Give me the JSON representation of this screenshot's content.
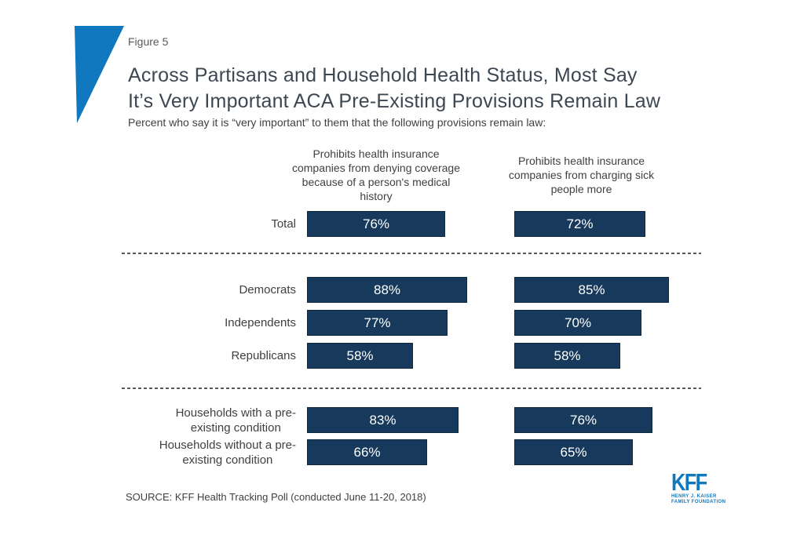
{
  "figure_label": "Figure 5",
  "title_lines": [
    "Across Partisans and Household Health Status, Most Say",
    "It’s Very Important ACA Pre-Existing Provisions Remain Law"
  ],
  "subtitle": "Percent who say it is “very important” to them that the following provisions remain law:",
  "source": "SOURCE: KFF Health Tracking Poll (conducted June 11-20, 2018)",
  "logo": {
    "text": "KFF",
    "tagline_lines": [
      "HENRY J. KAISER",
      "FAMILY FOUNDATION"
    ]
  },
  "colors": {
    "bar": "#17395B",
    "accent_blue": "#0F78BE",
    "title_text": "#3D4752",
    "body_text": "#404040"
  },
  "chart_data": {
    "type": "bar",
    "orientation": "horizontal",
    "unit": "%",
    "xlim": [
      0,
      100
    ],
    "columns": [
      "Prohibits health insurance companies from denying coverage because of a person's medical history",
      "Prohibits health insurance companies from charging sick people more"
    ],
    "groups": [
      {
        "name": "total",
        "rows": [
          {
            "label_lines": [
              "Total"
            ],
            "values": [
              76,
              72
            ]
          }
        ]
      },
      {
        "name": "party",
        "rows": [
          {
            "label_lines": [
              "Democrats"
            ],
            "values": [
              88,
              85
            ]
          },
          {
            "label_lines": [
              "Independents"
            ],
            "values": [
              77,
              70
            ]
          },
          {
            "label_lines": [
              "Republicans"
            ],
            "values": [
              58,
              58
            ]
          }
        ]
      },
      {
        "name": "household-health-status",
        "rows": [
          {
            "label_lines": [
              "Households with a pre-",
              "existing condition"
            ],
            "values": [
              83,
              76
            ]
          },
          {
            "label_lines": [
              "Households without a pre-",
              "existing condition"
            ],
            "values": [
              66,
              65
            ]
          }
        ]
      }
    ]
  }
}
